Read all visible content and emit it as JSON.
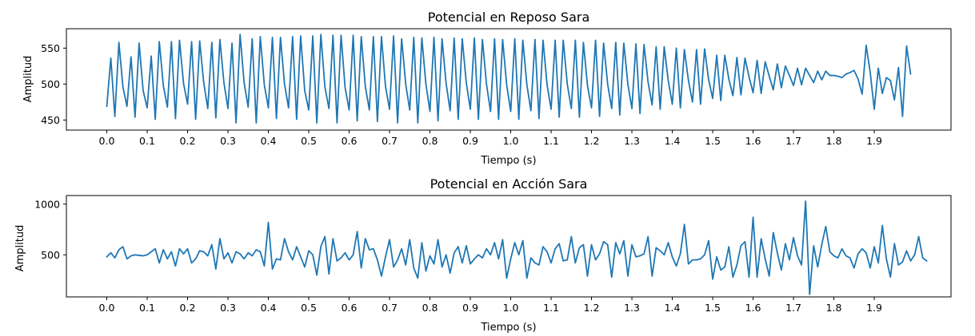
{
  "figure": {
    "line_color": "#1f77b4"
  },
  "chart_data": [
    {
      "type": "line",
      "title": "Potencial en Reposo Sara",
      "xlabel": "Tiempo (s)",
      "ylabel": "Amplitud",
      "xlim": [
        -0.1,
        2.09
      ],
      "ylim": [
        436,
        577
      ],
      "xticks": [
        0.0,
        0.1,
        0.2,
        0.3,
        0.4,
        0.5,
        0.6,
        0.7,
        0.8,
        0.9,
        1.0,
        1.1,
        1.2,
        1.3,
        1.4,
        1.5,
        1.6,
        1.7,
        1.8,
        1.9
      ],
      "xtick_labels": [
        "0.0",
        "0.1",
        "0.2",
        "0.3",
        "0.4",
        "0.5",
        "0.6",
        "0.7",
        "0.8",
        "0.9",
        "1.0",
        "1.1",
        "1.2",
        "1.3",
        "1.4",
        "1.5",
        "1.6",
        "1.7",
        "1.8",
        "1.9"
      ],
      "yticks": [
        450,
        500,
        550
      ],
      "ytick_labels": [
        "450",
        "500",
        "550"
      ],
      "grid": false,
      "series": [
        {
          "x_start": 0.0,
          "x_step": 0.01,
          "values": [
            469,
            536,
            455,
            558,
            496,
            469,
            538,
            454,
            557,
            491,
            467,
            539,
            451,
            559,
            498,
            468,
            559,
            452,
            561,
            501,
            472,
            559,
            451,
            560,
            502,
            466,
            558,
            453,
            562,
            502,
            466,
            557,
            446,
            569,
            502,
            468,
            563,
            446,
            566,
            499,
            467,
            565,
            452,
            565,
            500,
            467,
            566,
            451,
            567,
            491,
            464,
            567,
            446,
            569,
            496,
            466,
            568,
            446,
            568,
            495,
            464,
            568,
            449,
            566,
            497,
            464,
            566,
            448,
            566,
            497,
            465,
            567,
            446,
            563,
            500,
            464,
            565,
            446,
            564,
            500,
            462,
            565,
            449,
            563,
            501,
            463,
            564,
            451,
            563,
            502,
            465,
            564,
            451,
            562,
            500,
            462,
            563,
            451,
            562,
            499,
            462,
            563,
            451,
            561,
            499,
            463,
            562,
            452,
            561,
            499,
            465,
            561,
            454,
            561,
            500,
            466,
            561,
            454,
            558,
            498,
            467,
            561,
            455,
            557,
            500,
            466,
            558,
            457,
            557,
            500,
            466,
            556,
            459,
            555,
            503,
            471,
            552,
            465,
            552,
            505,
            472,
            550,
            467,
            548,
            505,
            475,
            548,
            472,
            549,
            506,
            480,
            540,
            477,
            540,
            507,
            484,
            537,
            485,
            536,
            510,
            488,
            533,
            487,
            531,
            511,
            492,
            528,
            495,
            525,
            512,
            498,
            522,
            499,
            522,
            512,
            502,
            518,
            506,
            518,
            512,
            512,
            511,
            509,
            514,
            516,
            519,
            507,
            486,
            554,
            516,
            465,
            522,
            487,
            509,
            505,
            478,
            523,
            455,
            553,
            514
          ]
        }
      ]
    },
    {
      "type": "line",
      "title": "Potencial en Acción Sara",
      "xlabel": "Tiempo (s)",
      "ylabel": "Amplitud",
      "xlim": [
        -0.1,
        2.09
      ],
      "ylim": [
        85,
        1085
      ],
      "xticks": [
        0.0,
        0.1,
        0.2,
        0.3,
        0.4,
        0.5,
        0.6,
        0.7,
        0.8,
        0.9,
        1.0,
        1.1,
        1.2,
        1.3,
        1.4,
        1.5,
        1.6,
        1.7,
        1.8,
        1.9
      ],
      "xtick_labels": [
        "0.0",
        "0.1",
        "0.2",
        "0.3",
        "0.4",
        "0.5",
        "0.6",
        "0.7",
        "0.8",
        "0.9",
        "1.0",
        "1.1",
        "1.2",
        "1.3",
        "1.4",
        "1.5",
        "1.6",
        "1.7",
        "1.8",
        "1.9"
      ],
      "yticks": [
        500,
        1000
      ],
      "ytick_labels": [
        "500",
        "1000"
      ],
      "grid": false,
      "series": [
        {
          "x_start": 0.0,
          "x_step": 0.01,
          "values": [
            480,
            520,
            470,
            550,
            580,
            460,
            490,
            500,
            495,
            490,
            500,
            530,
            560,
            420,
            550,
            460,
            530,
            390,
            560,
            510,
            560,
            420,
            460,
            540,
            530,
            490,
            600,
            360,
            660,
            460,
            520,
            420,
            530,
            510,
            460,
            520,
            490,
            550,
            530,
            390,
            820,
            360,
            460,
            450,
            660,
            530,
            450,
            580,
            480,
            380,
            540,
            500,
            300,
            580,
            680,
            310,
            660,
            440,
            470,
            520,
            450,
            500,
            730,
            370,
            660,
            550,
            560,
            450,
            290,
            480,
            650,
            380,
            450,
            560,
            400,
            650,
            370,
            270,
            620,
            340,
            490,
            410,
            650,
            380,
            500,
            320,
            520,
            580,
            420,
            590,
            410,
            460,
            500,
            470,
            560,
            500,
            620,
            460,
            650,
            270,
            460,
            620,
            500,
            640,
            270,
            470,
            420,
            400,
            580,
            530,
            420,
            560,
            610,
            440,
            450,
            680,
            420,
            570,
            600,
            290,
            600,
            450,
            510,
            630,
            600,
            280,
            620,
            510,
            640,
            290,
            600,
            480,
            490,
            510,
            680,
            290,
            570,
            540,
            500,
            620,
            480,
            390,
            510,
            800,
            410,
            450,
            450,
            460,
            500,
            640,
            260,
            480,
            350,
            380,
            580,
            280,
            400,
            590,
            630,
            280,
            870,
            280,
            660,
            460,
            290,
            720,
            520,
            350,
            610,
            450,
            670,
            490,
            400,
            1030,
            110,
            590,
            380,
            600,
            780,
            530,
            490,
            470,
            560,
            490,
            470,
            370,
            510,
            560,
            520,
            370,
            580,
            420,
            790,
            460,
            280,
            610,
            400,
            430,
            540,
            440,
            500,
            680,
            470,
            440
          ]
        }
      ]
    }
  ]
}
